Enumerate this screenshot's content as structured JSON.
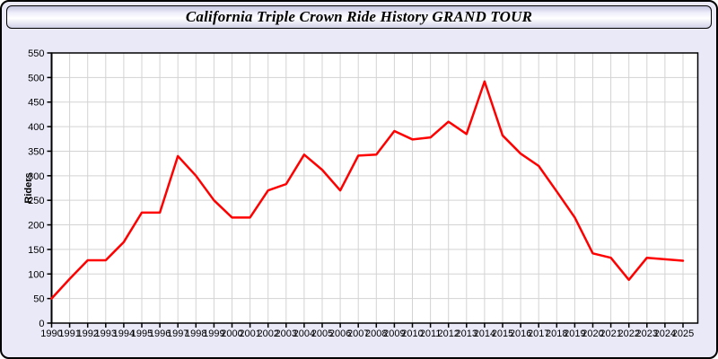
{
  "page": {
    "title": "California Triple Crown Ride History GRAND TOUR",
    "background_color": "#e9e9f8",
    "plot_background_color": "#ffffff",
    "grid_color": "#d3d3d3",
    "axis_color": "#000000"
  },
  "chart_data": {
    "type": "line",
    "title": "California Triple Crown Ride History GRAND TOUR",
    "xlabel": "",
    "ylabel": "Riders",
    "ylim": [
      0,
      550
    ],
    "y_tick_step": 50,
    "grid": true,
    "legend": "none",
    "line_color": "#ff0000",
    "x": [
      1990,
      1991,
      1992,
      1993,
      1994,
      1995,
      1996,
      1997,
      1998,
      1999,
      2000,
      2001,
      2002,
      2003,
      2004,
      2005,
      2006,
      2007,
      2008,
      2009,
      2010,
      2011,
      2012,
      2013,
      2014,
      2015,
      2016,
      2017,
      2018,
      2019,
      2020,
      2021,
      2022,
      2023,
      2024,
      2025
    ],
    "series": [
      {
        "name": "Riders",
        "values": [
          50,
          90,
          128,
          128,
          165,
          225,
          225,
          340,
          300,
          250,
          215,
          215,
          270,
          283,
          343,
          312,
          270,
          341,
          343,
          391,
          374,
          378,
          410,
          385,
          492,
          382,
          345,
          320,
          268,
          215,
          142,
          133,
          88,
          133,
          130,
          127
        ]
      }
    ]
  }
}
